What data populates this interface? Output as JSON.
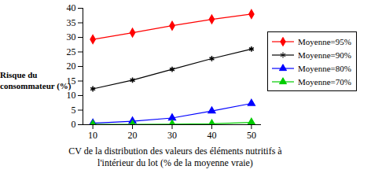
{
  "chart_data": {
    "type": "line",
    "x_label": "CV de la distribution des valeurs des éléments nutritifs à l'intérieur du lot (% de la moyenne vraie)",
    "y_label": "Risque du consommateur (%)",
    "x": [
      10,
      20,
      30,
      40,
      50
    ],
    "xlim": [
      7.5,
      52.5
    ],
    "xticks": [
      10,
      20,
      30,
      40,
      50
    ],
    "ylim": [
      0,
      40
    ],
    "yticks": [
      0,
      5,
      10,
      15,
      20,
      25,
      30,
      35,
      40
    ],
    "legend": "right",
    "series": [
      {
        "name": "Moyenne=95%",
        "color": "#ff0000",
        "marker": "diamond",
        "values": [
          29.3,
          31.6,
          34.0,
          36.2,
          38.0
        ]
      },
      {
        "name": "Moyenne=90%",
        "color": "#000000",
        "marker": "asterisk",
        "values": [
          12.3,
          15.3,
          19.0,
          22.7,
          26.0
        ]
      },
      {
        "name": "Moyenne=80%",
        "color": "#0000ff",
        "marker": "triangle",
        "values": [
          0.5,
          1.2,
          2.3,
          4.7,
          7.3
        ]
      },
      {
        "name": "Moyenne=70%",
        "color": "#00cc00",
        "marker": "triangle",
        "values": [
          0.1,
          0.1,
          0.2,
          0.3,
          0.8
        ]
      }
    ]
  }
}
